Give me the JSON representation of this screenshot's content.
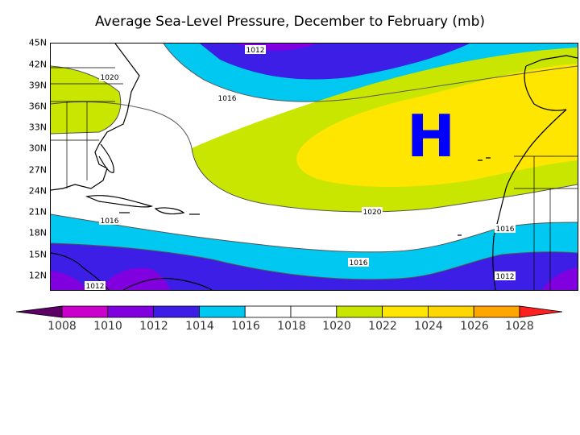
{
  "title": "Average Sea-Level Pressure, December to February (mb)",
  "high_marker": {
    "label": "H",
    "color": "#0000FF"
  },
  "lat_labels": [
    "45N",
    "42N",
    "39N",
    "36N",
    "33N",
    "30N",
    "27N",
    "24N",
    "21N",
    "18N",
    "15N",
    "12N"
  ],
  "contour_labels": [
    "1012",
    "1020",
    "1016",
    "1020",
    "1016",
    "1016",
    "1016",
    "1012",
    "1012"
  ],
  "colorbar": {
    "labels": [
      "1008",
      "1010",
      "1012",
      "1014",
      "1016",
      "1018",
      "1020",
      "1022",
      "1024",
      "1026",
      "1028"
    ],
    "colors": [
      "#5C0066",
      "#CC00CC",
      "#8000E0",
      "#3C1EE6",
      "#00C8F0",
      "#FFFFFF",
      "#FFFFFF",
      "#C8E600",
      "#FFE600",
      "#FFD700",
      "#FFA500",
      "#FF2020"
    ]
  }
}
